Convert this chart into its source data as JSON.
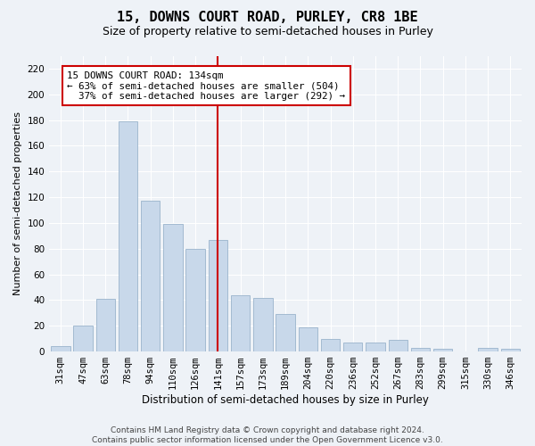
{
  "title": "15, DOWNS COURT ROAD, PURLEY, CR8 1BE",
  "subtitle": "Size of property relative to semi-detached houses in Purley",
  "xlabel": "Distribution of semi-detached houses by size in Purley",
  "ylabel": "Number of semi-detached properties",
  "categories": [
    "31sqm",
    "47sqm",
    "63sqm",
    "78sqm",
    "94sqm",
    "110sqm",
    "126sqm",
    "141sqm",
    "157sqm",
    "173sqm",
    "189sqm",
    "204sqm",
    "220sqm",
    "236sqm",
    "252sqm",
    "267sqm",
    "283sqm",
    "299sqm",
    "315sqm",
    "330sqm",
    "346sqm"
  ],
  "values": [
    4,
    20,
    41,
    179,
    117,
    99,
    80,
    87,
    44,
    42,
    29,
    19,
    10,
    7,
    7,
    9,
    3,
    2,
    0,
    3,
    2
  ],
  "bar_color": "#c8d8ea",
  "bar_edgecolor": "#9ab4cc",
  "highlight_line_index": 7,
  "highlight_line_color": "#cc0000",
  "annotation_text": "15 DOWNS COURT ROAD: 134sqm\n← 63% of semi-detached houses are smaller (504)\n  37% of semi-detached houses are larger (292) →",
  "annotation_box_facecolor": "#ffffff",
  "annotation_box_edgecolor": "#cc0000",
  "ylim": [
    0,
    230
  ],
  "yticks": [
    0,
    20,
    40,
    60,
    80,
    100,
    120,
    140,
    160,
    180,
    200,
    220
  ],
  "footer_text": "Contains HM Land Registry data © Crown copyright and database right 2024.\nContains public sector information licensed under the Open Government Licence v3.0.",
  "bg_color": "#eef2f7",
  "grid_color": "#ffffff",
  "title_fontsize": 11,
  "subtitle_fontsize": 9,
  "xlabel_fontsize": 8.5,
  "ylabel_fontsize": 8,
  "tick_fontsize": 7.5,
  "footer_fontsize": 6.5,
  "annotation_fontsize": 7.8
}
